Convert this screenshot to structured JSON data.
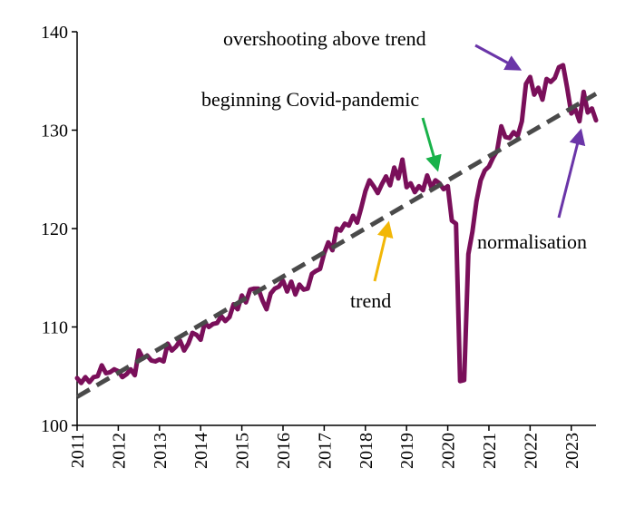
{
  "chart_data": {
    "type": "line",
    "title": "",
    "xlabel": "",
    "ylabel": "",
    "xlim": [
      2011.0,
      2023.6
    ],
    "ylim": [
      100,
      140
    ],
    "y_ticks": [
      100,
      110,
      120,
      130,
      140
    ],
    "x_tick_labels": [
      "2011",
      "2012",
      "2013",
      "2014",
      "2015",
      "2016",
      "2017",
      "2018",
      "2019",
      "2020",
      "2021",
      "2022",
      "2023"
    ],
    "grid": false,
    "legend": "none",
    "series": [
      {
        "role": "actual",
        "color": "#7a0f5a",
        "points": [
          [
            2011.0,
            104.8
          ],
          [
            2011.1,
            104.3
          ],
          [
            2011.2,
            104.9
          ],
          [
            2011.3,
            104.4
          ],
          [
            2011.4,
            104.9
          ],
          [
            2011.5,
            105.0
          ],
          [
            2011.6,
            106.1
          ],
          [
            2011.7,
            105.3
          ],
          [
            2011.8,
            105.4
          ],
          [
            2011.9,
            105.7
          ],
          [
            2012.0,
            105.5
          ],
          [
            2012.1,
            104.9
          ],
          [
            2012.2,
            105.2
          ],
          [
            2012.3,
            105.7
          ],
          [
            2012.4,
            105.1
          ],
          [
            2012.5,
            107.6
          ],
          [
            2012.6,
            106.8
          ],
          [
            2012.7,
            107.1
          ],
          [
            2012.8,
            106.6
          ],
          [
            2012.9,
            106.5
          ],
          [
            2013.0,
            106.7
          ],
          [
            2013.1,
            106.5
          ],
          [
            2013.2,
            108.3
          ],
          [
            2013.3,
            107.6
          ],
          [
            2013.4,
            108.0
          ],
          [
            2013.5,
            108.6
          ],
          [
            2013.6,
            107.6
          ],
          [
            2013.7,
            108.3
          ],
          [
            2013.8,
            109.4
          ],
          [
            2013.9,
            109.2
          ],
          [
            2014.0,
            108.7
          ],
          [
            2014.1,
            110.4
          ],
          [
            2014.2,
            110.0
          ],
          [
            2014.3,
            110.3
          ],
          [
            2014.4,
            110.4
          ],
          [
            2014.5,
            111.1
          ],
          [
            2014.6,
            110.6
          ],
          [
            2014.7,
            111.0
          ],
          [
            2014.8,
            112.3
          ],
          [
            2014.9,
            111.8
          ],
          [
            2015.0,
            113.2
          ],
          [
            2015.1,
            112.5
          ],
          [
            2015.2,
            113.8
          ],
          [
            2015.3,
            113.9
          ],
          [
            2015.4,
            113.9
          ],
          [
            2015.5,
            112.7
          ],
          [
            2015.6,
            111.8
          ],
          [
            2015.7,
            113.4
          ],
          [
            2015.8,
            113.9
          ],
          [
            2015.9,
            114.1
          ],
          [
            2016.0,
            114.7
          ],
          [
            2016.1,
            113.6
          ],
          [
            2016.2,
            114.6
          ],
          [
            2016.3,
            113.3
          ],
          [
            2016.4,
            114.3
          ],
          [
            2016.5,
            113.8
          ],
          [
            2016.6,
            113.9
          ],
          [
            2016.7,
            115.4
          ],
          [
            2016.8,
            115.7
          ],
          [
            2016.9,
            115.9
          ],
          [
            2017.0,
            117.5
          ],
          [
            2017.1,
            118.6
          ],
          [
            2017.2,
            117.8
          ],
          [
            2017.3,
            120.0
          ],
          [
            2017.4,
            119.8
          ],
          [
            2017.5,
            120.5
          ],
          [
            2017.6,
            120.3
          ],
          [
            2017.7,
            121.3
          ],
          [
            2017.8,
            120.6
          ],
          [
            2017.9,
            122.1
          ],
          [
            2018.0,
            123.8
          ],
          [
            2018.1,
            124.9
          ],
          [
            2018.2,
            124.3
          ],
          [
            2018.3,
            123.6
          ],
          [
            2018.4,
            124.5
          ],
          [
            2018.5,
            125.3
          ],
          [
            2018.6,
            124.4
          ],
          [
            2018.7,
            126.2
          ],
          [
            2018.8,
            125.1
          ],
          [
            2018.9,
            127.0
          ],
          [
            2019.0,
            124.2
          ],
          [
            2019.1,
            124.6
          ],
          [
            2019.2,
            123.7
          ],
          [
            2019.3,
            124.3
          ],
          [
            2019.4,
            123.9
          ],
          [
            2019.5,
            125.4
          ],
          [
            2019.6,
            124.2
          ],
          [
            2019.7,
            124.9
          ],
          [
            2019.8,
            124.6
          ],
          [
            2019.9,
            124.0
          ],
          [
            2020.0,
            124.3
          ],
          [
            2020.1,
            120.8
          ],
          [
            2020.2,
            120.5
          ],
          [
            2020.3,
            104.5
          ],
          [
            2020.4,
            104.6
          ],
          [
            2020.5,
            117.4
          ],
          [
            2020.6,
            119.7
          ],
          [
            2020.7,
            122.8
          ],
          [
            2020.8,
            124.9
          ],
          [
            2020.9,
            125.9
          ],
          [
            2021.0,
            126.3
          ],
          [
            2021.1,
            127.2
          ],
          [
            2021.2,
            127.9
          ],
          [
            2021.3,
            130.4
          ],
          [
            2021.4,
            129.3
          ],
          [
            2021.5,
            129.2
          ],
          [
            2021.6,
            129.8
          ],
          [
            2021.7,
            129.4
          ],
          [
            2021.8,
            130.9
          ],
          [
            2021.9,
            134.7
          ],
          [
            2022.0,
            135.4
          ],
          [
            2022.1,
            133.6
          ],
          [
            2022.2,
            134.3
          ],
          [
            2022.3,
            133.1
          ],
          [
            2022.4,
            135.2
          ],
          [
            2022.5,
            134.9
          ],
          [
            2022.6,
            135.3
          ],
          [
            2022.7,
            136.4
          ],
          [
            2022.8,
            136.6
          ],
          [
            2022.9,
            134.3
          ],
          [
            2023.0,
            131.7
          ],
          [
            2023.1,
            132.1
          ],
          [
            2023.2,
            130.9
          ],
          [
            2023.3,
            133.9
          ],
          [
            2023.4,
            131.8
          ],
          [
            2023.5,
            132.2
          ],
          [
            2023.6,
            131.0
          ]
        ]
      },
      {
        "role": "trend",
        "color": "#4a4a4a",
        "dashed": true,
        "points": [
          [
            2011.0,
            102.9
          ],
          [
            2023.6,
            133.7
          ]
        ]
      }
    ],
    "annotations": [
      {
        "text": "overshooting above trend",
        "arrow_color": "#6a35a8"
      },
      {
        "text": "beginning  Covid-pandemic",
        "arrow_color": "#19b24a"
      },
      {
        "text": "normalisation",
        "arrow_color": "#6a35a8"
      },
      {
        "text": "trend",
        "arrow_color": "#f2b707"
      }
    ]
  }
}
